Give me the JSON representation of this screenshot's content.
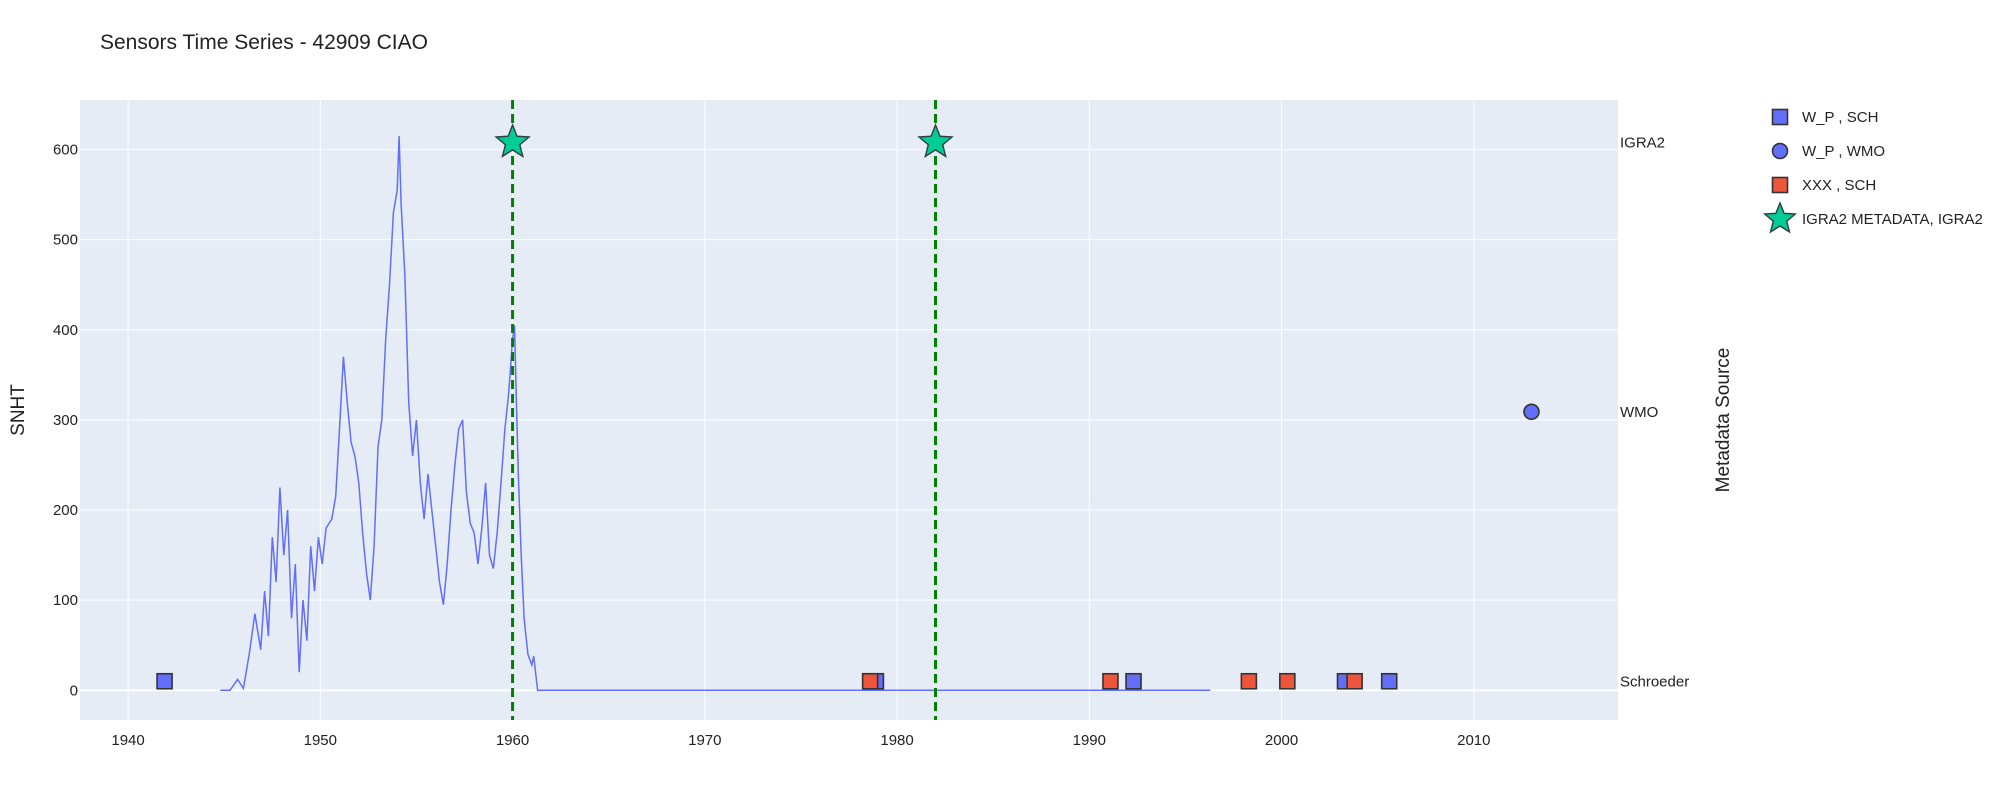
{
  "chart_data": {
    "type": "line",
    "title": "Sensors Time Series - 42909 CIAO",
    "ylabel": "SNHT",
    "y2label": "Metadata Source",
    "xlim": [
      1937.5,
      2017.5
    ],
    "ylim": [
      -33,
      655
    ],
    "x_ticks": [
      1940,
      1950,
      1960,
      1970,
      1980,
      1990,
      2000,
      2010
    ],
    "y_ticks": [
      0,
      100,
      200,
      300,
      400,
      500,
      600
    ],
    "y2_ticks": [
      {
        "label": "IGRA2",
        "y": 608
      },
      {
        "label": "WMO",
        "y": 309
      },
      {
        "label": "Schroeder",
        "y": 10
      }
    ],
    "grid": true,
    "legend_position": "right",
    "colors": {
      "plot_bg": "#e5ecf6",
      "grid": "#ffffff",
      "snht_line": "#636efa",
      "sch_wp": "#636efa",
      "sch_xxx": "#ef553b",
      "wmo": "#636efa",
      "igra2": "#00cc96",
      "vline": "#008000"
    },
    "snht_series": {
      "name": "SNHT",
      "points": [
        [
          1944.8,
          0
        ],
        [
          1945.3,
          0
        ],
        [
          1945.7,
          12
        ],
        [
          1946.0,
          2
        ],
        [
          1946.3,
          40
        ],
        [
          1946.6,
          85
        ],
        [
          1946.9,
          45
        ],
        [
          1947.1,
          110
        ],
        [
          1947.3,
          60
        ],
        [
          1947.5,
          170
        ],
        [
          1947.7,
          120
        ],
        [
          1947.9,
          225
        ],
        [
          1948.1,
          150
        ],
        [
          1948.3,
          200
        ],
        [
          1948.5,
          80
        ],
        [
          1948.7,
          140
        ],
        [
          1948.9,
          20
        ],
        [
          1949.1,
          100
        ],
        [
          1949.3,
          55
        ],
        [
          1949.5,
          160
        ],
        [
          1949.7,
          110
        ],
        [
          1949.9,
          170
        ],
        [
          1950.1,
          140
        ],
        [
          1950.3,
          180
        ],
        [
          1950.6,
          190
        ],
        [
          1950.8,
          215
        ],
        [
          1951.0,
          290
        ],
        [
          1951.2,
          370
        ],
        [
          1951.4,
          320
        ],
        [
          1951.6,
          275
        ],
        [
          1951.8,
          260
        ],
        [
          1952.0,
          230
        ],
        [
          1952.2,
          175
        ],
        [
          1952.4,
          130
        ],
        [
          1952.6,
          100
        ],
        [
          1952.8,
          160
        ],
        [
          1953.0,
          270
        ],
        [
          1953.2,
          300
        ],
        [
          1953.4,
          390
        ],
        [
          1953.6,
          450
        ],
        [
          1953.8,
          530
        ],
        [
          1954.0,
          555
        ],
        [
          1954.1,
          615
        ],
        [
          1954.2,
          540
        ],
        [
          1954.4,
          460
        ],
        [
          1954.6,
          320
        ],
        [
          1954.8,
          260
        ],
        [
          1955.0,
          300
        ],
        [
          1955.2,
          230
        ],
        [
          1955.4,
          190
        ],
        [
          1955.6,
          240
        ],
        [
          1955.8,
          200
        ],
        [
          1956.0,
          160
        ],
        [
          1956.2,
          120
        ],
        [
          1956.4,
          95
        ],
        [
          1956.6,
          140
        ],
        [
          1956.8,
          200
        ],
        [
          1957.0,
          250
        ],
        [
          1957.2,
          290
        ],
        [
          1957.4,
          300
        ],
        [
          1957.6,
          220
        ],
        [
          1957.8,
          185
        ],
        [
          1958.0,
          175
        ],
        [
          1958.2,
          140
        ],
        [
          1958.4,
          180
        ],
        [
          1958.6,
          230
        ],
        [
          1958.8,
          150
        ],
        [
          1959.0,
          135
        ],
        [
          1959.2,
          175
        ],
        [
          1959.4,
          230
        ],
        [
          1959.6,
          290
        ],
        [
          1959.8,
          330
        ],
        [
          1960.0,
          390
        ],
        [
          1960.1,
          405
        ],
        [
          1960.2,
          320
        ],
        [
          1960.3,
          240
        ],
        [
          1960.45,
          150
        ],
        [
          1960.6,
          80
        ],
        [
          1960.8,
          40
        ],
        [
          1961.0,
          28
        ],
        [
          1961.1,
          38
        ],
        [
          1961.3,
          0
        ],
        [
          1996.3,
          0
        ]
      ]
    },
    "series": [
      {
        "name": "W_P , SCH",
        "marker": "square",
        "color": "#636efa",
        "level": "Schroeder",
        "x": [
          1941.9,
          1978.9,
          1992.3,
          2003.3,
          2005.6
        ]
      },
      {
        "name": "W_P , WMO",
        "marker": "circle",
        "color": "#636efa",
        "level": "WMO",
        "x": [
          2013.0
        ]
      },
      {
        "name": "XXX , SCH",
        "marker": "square",
        "color": "#ef553b",
        "level": "Schroeder",
        "x": [
          1978.6,
          1991.1,
          1998.3,
          2000.3,
          2003.8
        ]
      },
      {
        "name": "IGRA2 METADATA, IGRA2",
        "marker": "star",
        "color": "#00cc96",
        "level": "IGRA2",
        "x": [
          1960.0,
          1982.0
        ]
      }
    ],
    "vlines": [
      1960.0,
      1982.0
    ]
  }
}
